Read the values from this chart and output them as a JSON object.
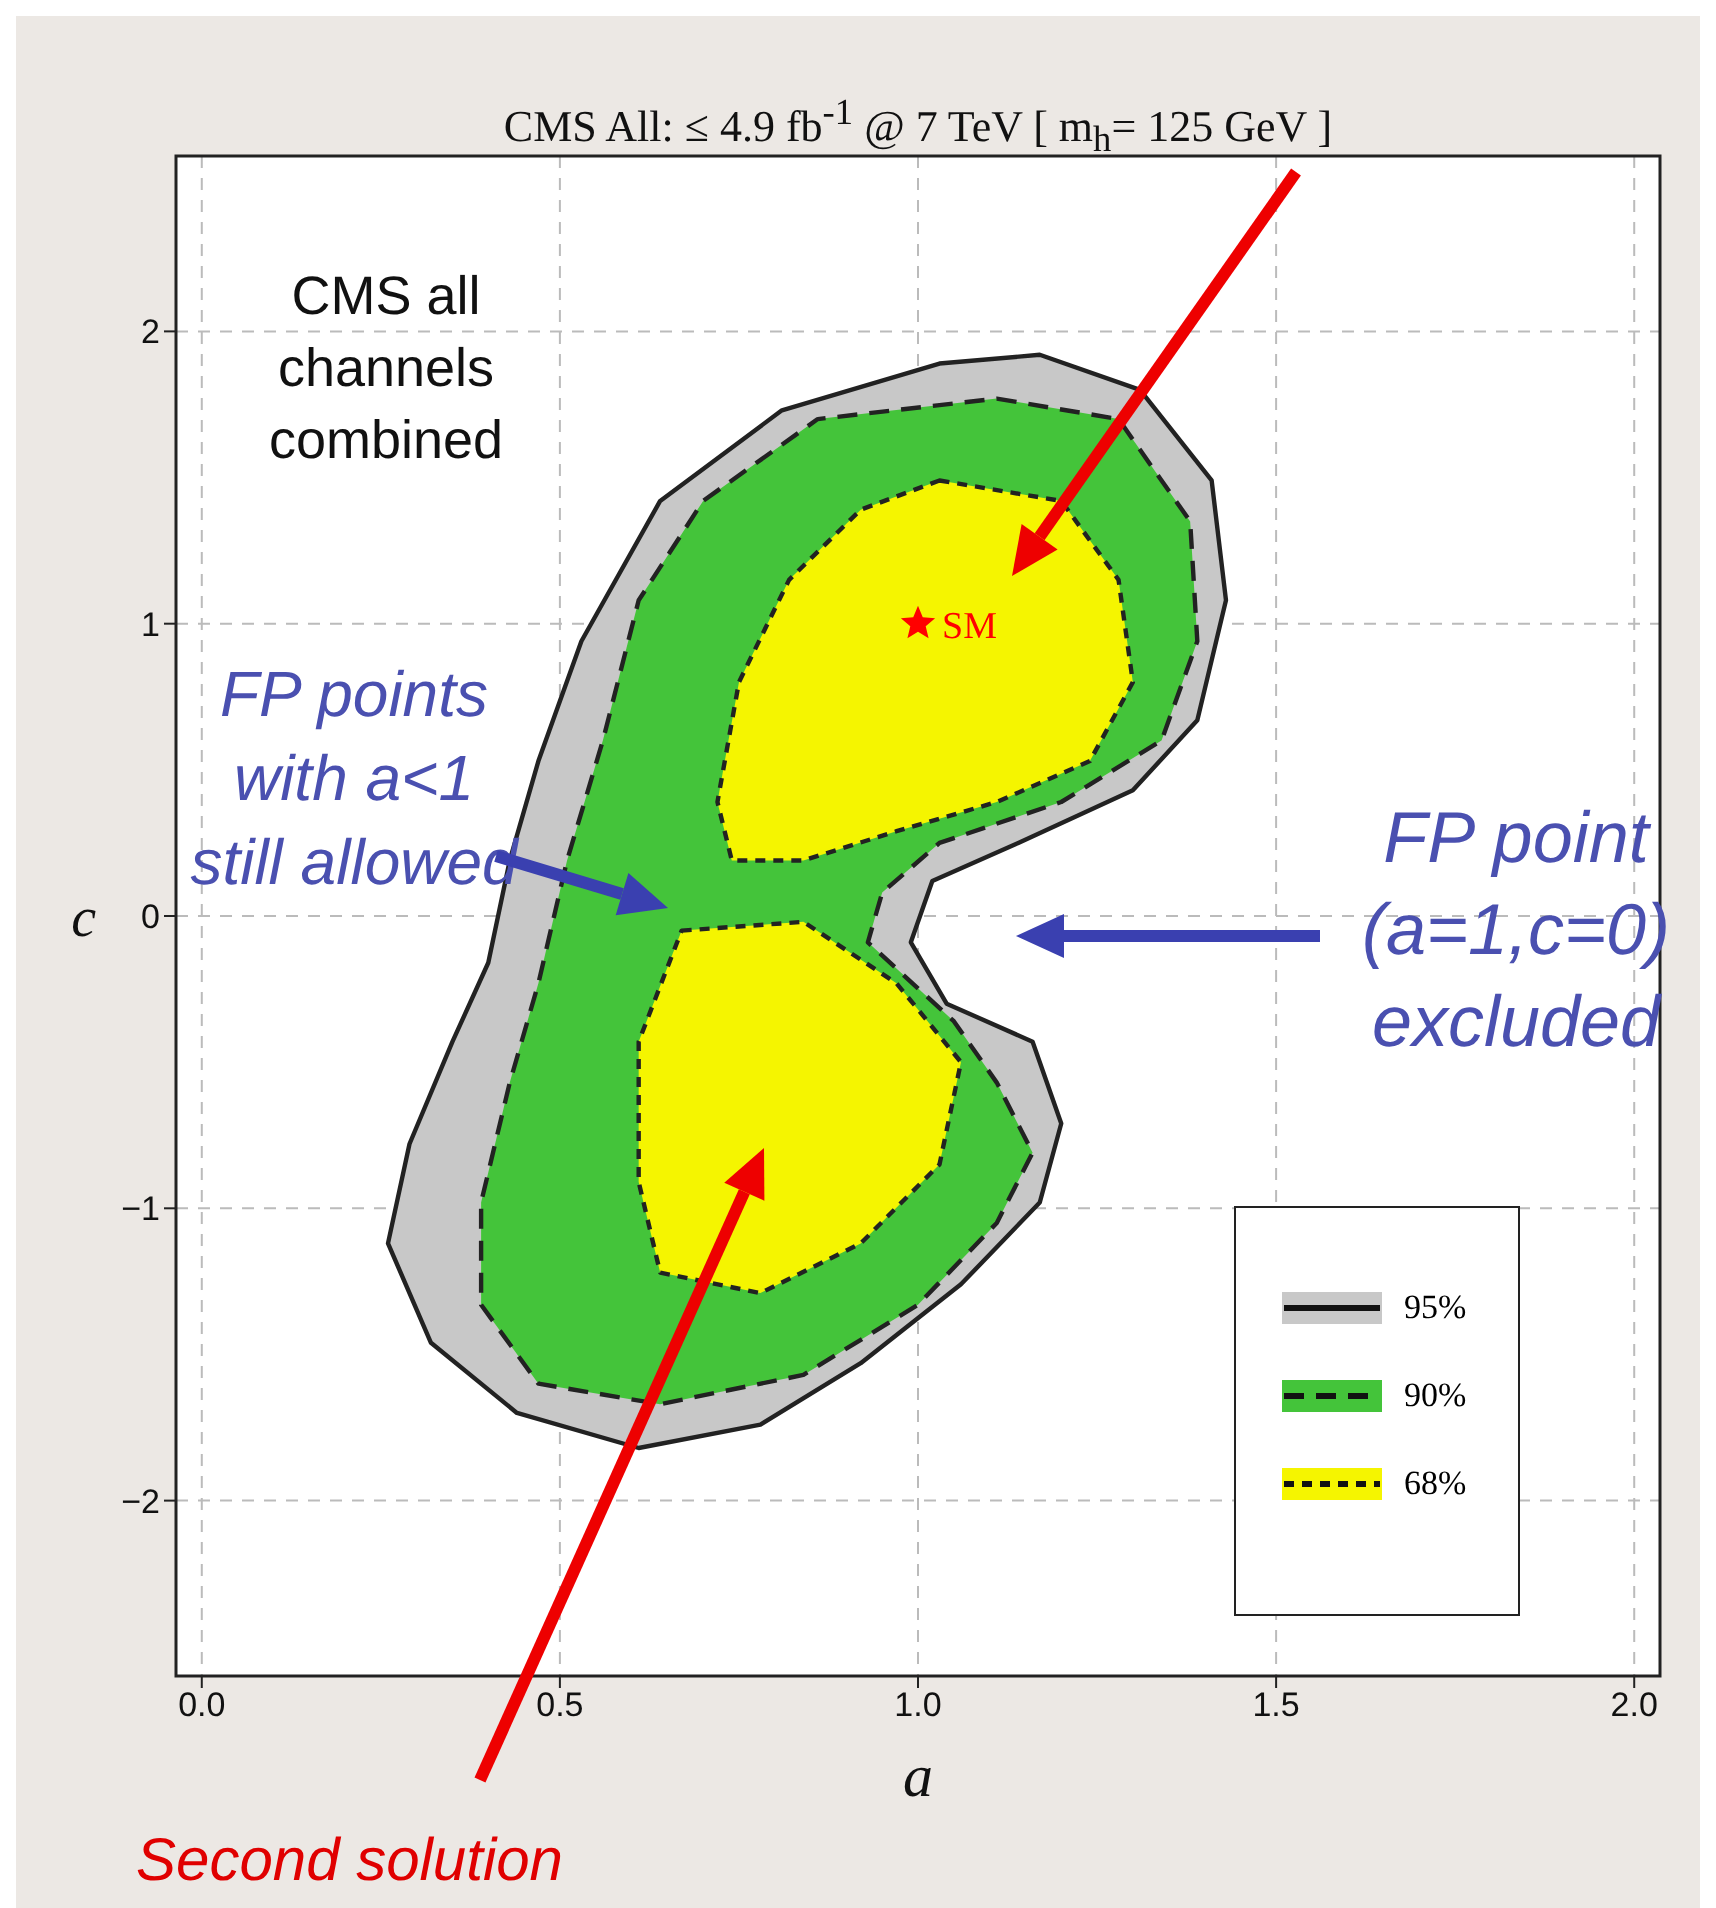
{
  "chart_data": {
    "type": "area",
    "title": "CMS All:  ≤ 4.9 fb$^{-1}$ @ 7 TeV [ m$_{h}$= 125 GeV ]",
    "xlabel": "a",
    "ylabel": "c",
    "xlim": [
      -0.036,
      2.036
    ],
    "ylim": [
      -2.6,
      2.6
    ],
    "xticks": [
      {
        "value": 0,
        "label": "0.0"
      },
      {
        "value": 0.5,
        "label": "0.5"
      },
      {
        "value": 1,
        "label": "1.0"
      },
      {
        "value": 1.5,
        "label": "1.5"
      },
      {
        "value": 2,
        "label": "2.0"
      }
    ],
    "yticks": [
      {
        "value": -2,
        "label": "−2"
      },
      {
        "value": -1,
        "label": "−1"
      },
      0,
      1,
      2
    ],
    "grid": true,
    "legend": "bottom right",
    "series": [
      {
        "name": "95%",
        "color": "#c8c8c8",
        "line_style": "solid",
        "x": [
          1.03,
          1.17,
          1.31,
          1.41,
          1.43,
          1.39,
          1.3,
          1.14,
          1.02,
          0.99,
          1.04,
          1.16,
          1.2,
          1.17,
          1.06,
          0.92,
          0.78,
          0.61,
          0.44,
          0.32,
          0.26,
          0.29,
          0.35,
          0.4,
          0.43,
          0.47,
          0.53,
          0.64,
          0.81,
          1.03
        ],
        "values": [
          1.89,
          1.92,
          1.8,
          1.49,
          1.08,
          0.67,
          0.43,
          0.25,
          0.12,
          -0.09,
          -0.3,
          -0.43,
          -0.71,
          -0.98,
          -1.26,
          -1.53,
          -1.74,
          -1.82,
          -1.7,
          -1.46,
          -1.12,
          -0.78,
          -0.43,
          -0.16,
          0.19,
          0.53,
          0.94,
          1.42,
          1.73,
          1.89
        ]
      },
      {
        "name": "90%",
        "color": "#44c43a",
        "line_style": "dashed",
        "x": [
          1.11,
          1.28,
          1.38,
          1.39,
          1.34,
          1.2,
          1.03,
          0.95,
          0.93,
          1.05,
          1.11,
          1.16,
          1.11,
          1.0,
          0.84,
          0.64,
          0.47,
          0.39,
          0.39,
          0.43,
          0.47,
          0.51,
          0.56,
          0.61,
          0.7,
          0.86,
          1.11
        ],
        "values": [
          1.77,
          1.7,
          1.35,
          0.94,
          0.6,
          0.39,
          0.25,
          0.08,
          -0.09,
          -0.36,
          -0.57,
          -0.81,
          -1.05,
          -1.33,
          -1.57,
          -1.67,
          -1.6,
          -1.33,
          -0.98,
          -0.57,
          -0.23,
          0.19,
          0.6,
          1.08,
          1.42,
          1.7,
          1.77
        ]
      },
      {
        "name": "68%",
        "color": "#f5f500",
        "line_style": "dotted",
        "x": [
          1.03,
          1.2,
          1.28,
          1.3,
          1.24,
          1.11,
          0.97,
          0.84,
          0.74,
          0.72,
          0.75,
          0.82,
          0.92,
          1.03,
          null,
          0.67,
          0.84,
          0.97,
          1.06,
          1.03,
          0.92,
          0.78,
          0.64,
          0.61,
          0.61,
          0.67
        ],
        "values": [
          1.49,
          1.42,
          1.15,
          0.8,
          0.53,
          0.39,
          0.29,
          0.19,
          0.19,
          0.39,
          0.8,
          1.15,
          1.39,
          1.49,
          null,
          -0.05,
          -0.02,
          -0.23,
          -0.5,
          -0.85,
          -1.12,
          -1.29,
          -1.22,
          -0.91,
          -0.43,
          -0.05
        ]
      },
      {
        "type": "scatter",
        "name": "SM",
        "color": "#ff0000",
        "marker": "star",
        "x": [
          1
        ],
        "values": [
          1
        ]
      }
    ],
    "annotations": [
      "CMS all channels combined",
      "FP points with a<1 still allowed",
      "FP point (a=1,c=0) excluded",
      "Second solution"
    ]
  }
}
